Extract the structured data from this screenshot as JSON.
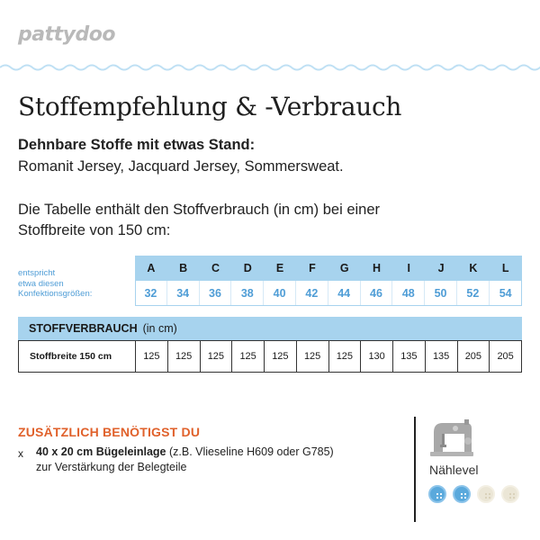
{
  "logo": "pattydoo",
  "title": "Stoffempfehlung & -Verbrauch",
  "fabric": {
    "heading": "Dehnbare Stoffe mit etwas Stand:",
    "list": "Romanit Jersey, Jacquard Jersey, Sommersweat."
  },
  "intro": {
    "line1": "Die Tabelle enthält den Stoffverbrauch (in cm) bei einer",
    "line2": "Stoffbreite von 150 cm:"
  },
  "size_table": {
    "caption_lines": [
      "entspricht",
      "etwa diesen",
      "Konfektionsgrößen:"
    ],
    "letters": [
      "A",
      "B",
      "C",
      "D",
      "E",
      "F",
      "G",
      "H",
      "I",
      "J",
      "K",
      "L"
    ],
    "sizes": [
      "32",
      "34",
      "36",
      "38",
      "40",
      "42",
      "44",
      "46",
      "48",
      "50",
      "52",
      "54"
    ]
  },
  "usage_table": {
    "heading": "STOFFVERBRAUCH",
    "unit": "(in cm)",
    "row_label": "Stoffbreite 150 cm",
    "values": [
      "125",
      "125",
      "125",
      "125",
      "125",
      "125",
      "125",
      "130",
      "135",
      "135",
      "205",
      "205"
    ]
  },
  "extra": {
    "title": "ZUSÄTZLICH BENÖTIGST DU",
    "bullet": "x",
    "item_bold": "40 x 20 cm Bügeleinlage",
    "item_rest": " (z.B. Vlieseline H609 oder G785)",
    "item_line2": "zur Verstärkung der Belegteile"
  },
  "level": {
    "label": "Nählevel",
    "value": 2,
    "max": 4,
    "icon": "sewing-machine-icon"
  },
  "colors": {
    "accent_blue": "#a7d3ee",
    "size_blue": "#4f9dd6",
    "wave_blue": "#bfe0f4",
    "orange": "#e0612b",
    "level_active": "#5aa9dc",
    "level_inactive": "#ebe6d6"
  }
}
